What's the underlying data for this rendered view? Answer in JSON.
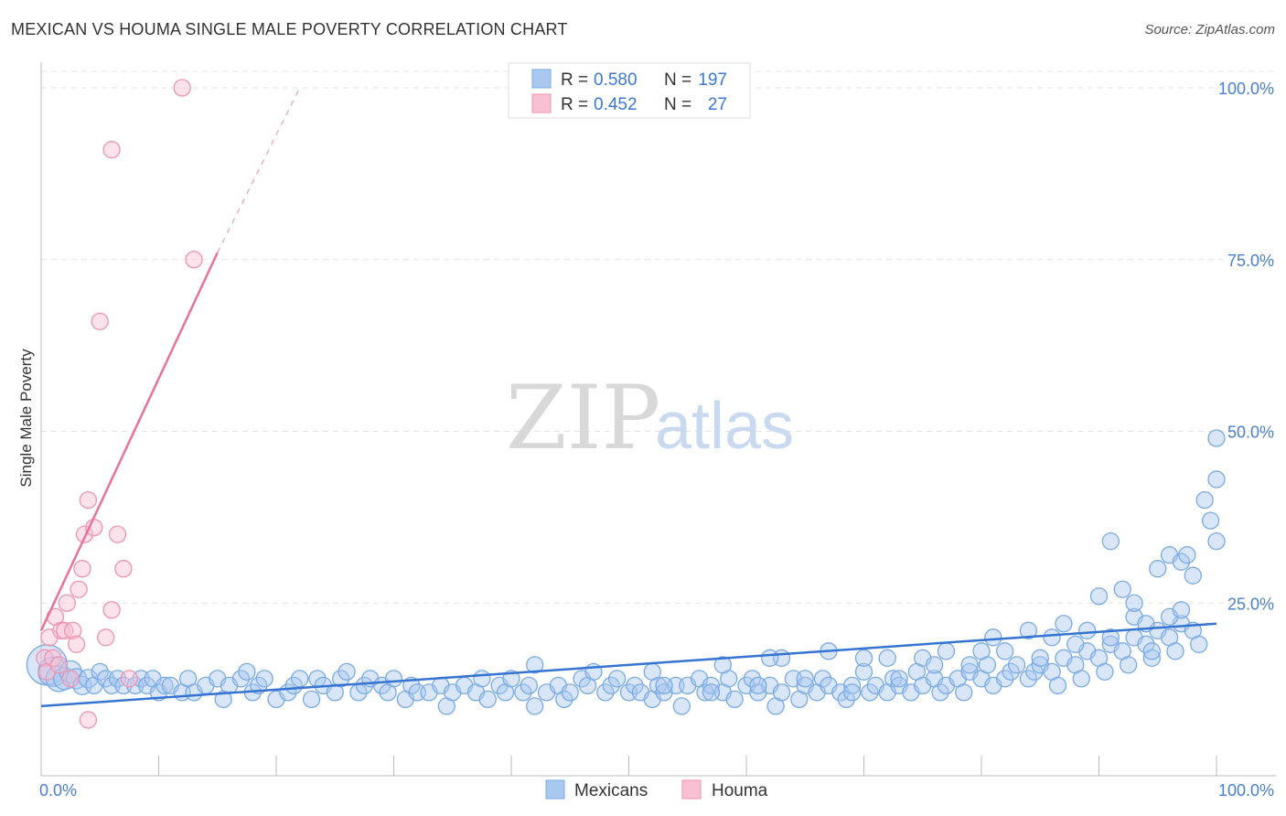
{
  "header": {
    "title": "MEXICAN VS HOUMA SINGLE MALE POVERTY CORRELATION CHART",
    "source": "Source: ZipAtlas.com"
  },
  "watermark": {
    "zip": "ZIP",
    "atlas": "atlas"
  },
  "legend": {
    "series": [
      {
        "name": "Mexicans",
        "r_label": "R =",
        "r_value": "0.580",
        "n_label": "N =",
        "n_value": "197",
        "color": "#a9c8f0",
        "stroke": "#7aaae6"
      },
      {
        "name": "Houma",
        "r_label": "R =",
        "r_value": "0.452",
        "n_label": "N =",
        "n_value": "27",
        "color": "#f8c0d2",
        "stroke": "#ee93b2"
      }
    ]
  },
  "chart_data": {
    "type": "scatter",
    "title": "MEXICAN VS HOUMA SINGLE MALE POVERTY CORRELATION CHART",
    "xlabel": "",
    "ylabel": "Single Male Poverty",
    "xlim": [
      0,
      100
    ],
    "ylim": [
      0,
      100
    ],
    "x_tick_labels": [
      "0.0%",
      "100.0%"
    ],
    "y_ticks": [
      25,
      50,
      75,
      100
    ],
    "y_tick_labels": [
      "25.0%",
      "50.0%",
      "75.0%",
      "100.0%"
    ],
    "grid": true,
    "series": [
      {
        "name": "Mexicans",
        "color": "#a9c8f0",
        "stroke": "#7aaae6",
        "trend": {
          "x0": 0,
          "y0": 10,
          "x1": 100,
          "y1": 22,
          "color": "#3574d1"
        },
        "points": [
          [
            0.5,
            16,
            22
          ],
          [
            1,
            15,
            16
          ],
          [
            1.5,
            14,
            14
          ],
          [
            2,
            14,
            12
          ],
          [
            2.5,
            15,
            12
          ],
          [
            3,
            14,
            11
          ],
          [
            3.5,
            13,
            10
          ],
          [
            4,
            14,
            10
          ],
          [
            4.5,
            13,
            9
          ],
          [
            5,
            15,
            9
          ],
          [
            5.5,
            14,
            9
          ],
          [
            6,
            13,
            9
          ],
          [
            6.5,
            14,
            9
          ],
          [
            7,
            13,
            9
          ],
          [
            8,
            13,
            9
          ],
          [
            8.5,
            14,
            9
          ],
          [
            9,
            13,
            9
          ],
          [
            9.5,
            14,
            9
          ],
          [
            10,
            12,
            9
          ],
          [
            10.5,
            13,
            9
          ],
          [
            11,
            13,
            9
          ],
          [
            12,
            12,
            9
          ],
          [
            12.5,
            14,
            9
          ],
          [
            13,
            12,
            9
          ],
          [
            14,
            13,
            9
          ],
          [
            15,
            14,
            9
          ],
          [
            15.5,
            11,
            9
          ],
          [
            16,
            13,
            9
          ],
          [
            17,
            14,
            9
          ],
          [
            17.5,
            15,
            9
          ],
          [
            18,
            12,
            9
          ],
          [
            18.5,
            13,
            9
          ],
          [
            19,
            14,
            9
          ],
          [
            20,
            11,
            9
          ],
          [
            21,
            12,
            9
          ],
          [
            21.5,
            13,
            9
          ],
          [
            22,
            14,
            9
          ],
          [
            23,
            11,
            9
          ],
          [
            23.5,
            14,
            9
          ],
          [
            24,
            13,
            9
          ],
          [
            25,
            12,
            9
          ],
          [
            25.5,
            14,
            9
          ],
          [
            26,
            15,
            9
          ],
          [
            27,
            12,
            9
          ],
          [
            27.5,
            13,
            9
          ],
          [
            28,
            14,
            9
          ],
          [
            29,
            13,
            9
          ],
          [
            29.5,
            12,
            9
          ],
          [
            30,
            14,
            9
          ],
          [
            31,
            11,
            9
          ],
          [
            31.5,
            13,
            9
          ],
          [
            32,
            12,
            9
          ],
          [
            33,
            12,
            9
          ],
          [
            34,
            13,
            9
          ],
          [
            34.5,
            10,
            9
          ],
          [
            35,
            12,
            9
          ],
          [
            36,
            13,
            9
          ],
          [
            37,
            12,
            9
          ],
          [
            37.5,
            14,
            9
          ],
          [
            38,
            11,
            9
          ],
          [
            39,
            13,
            9
          ],
          [
            39.5,
            12,
            9
          ],
          [
            40,
            14,
            9
          ],
          [
            41,
            12,
            9
          ],
          [
            41.5,
            13,
            9
          ],
          [
            42,
            10,
            9
          ],
          [
            43,
            12,
            9
          ],
          [
            44,
            13,
            9
          ],
          [
            44.5,
            11,
            9
          ],
          [
            45,
            12,
            9
          ],
          [
            46,
            14,
            9
          ],
          [
            46.5,
            13,
            9
          ],
          [
            47,
            15,
            9
          ],
          [
            48,
            12,
            9
          ],
          [
            48.5,
            13,
            9
          ],
          [
            49,
            14,
            9
          ],
          [
            50,
            12,
            9
          ],
          [
            50.5,
            13,
            9
          ],
          [
            51,
            12,
            9
          ],
          [
            52,
            11,
            9
          ],
          [
            52.5,
            13,
            9
          ],
          [
            53,
            12,
            9
          ],
          [
            54,
            13,
            9
          ],
          [
            54.5,
            10,
            9
          ],
          [
            55,
            13,
            9
          ],
          [
            56,
            14,
            9
          ],
          [
            56.5,
            12,
            9
          ],
          [
            57,
            13,
            9
          ],
          [
            58,
            12,
            9
          ],
          [
            58.5,
            14,
            9
          ],
          [
            59,
            11,
            9
          ],
          [
            60,
            13,
            9
          ],
          [
            60.5,
            14,
            9
          ],
          [
            61,
            12,
            9
          ],
          [
            62,
            13,
            9
          ],
          [
            62.5,
            10,
            9
          ],
          [
            63,
            12,
            9
          ],
          [
            64,
            14,
            9
          ],
          [
            64.5,
            11,
            9
          ],
          [
            65,
            13,
            9
          ],
          [
            66,
            12,
            9
          ],
          [
            66.5,
            14,
            9
          ],
          [
            67,
            13,
            9
          ],
          [
            68,
            12,
            9
          ],
          [
            68.5,
            11,
            9
          ],
          [
            69,
            13,
            9
          ],
          [
            70,
            15,
            9
          ],
          [
            70.5,
            12,
            9
          ],
          [
            71,
            13,
            9
          ],
          [
            72,
            12,
            9
          ],
          [
            72.5,
            14,
            9
          ],
          [
            73,
            13,
            9
          ],
          [
            74,
            12,
            9
          ],
          [
            74.5,
            15,
            9
          ],
          [
            75,
            13,
            9
          ],
          [
            76,
            14,
            9
          ],
          [
            76.5,
            12,
            9
          ],
          [
            77,
            13,
            9
          ],
          [
            78,
            14,
            9
          ],
          [
            78.5,
            12,
            9
          ],
          [
            79,
            15,
            9
          ],
          [
            80,
            14,
            9
          ],
          [
            80.5,
            16,
            9
          ],
          [
            81,
            13,
            9
          ],
          [
            82,
            14,
            9
          ],
          [
            82.5,
            15,
            9
          ],
          [
            83,
            16,
            9
          ],
          [
            84,
            14,
            9
          ],
          [
            84.5,
            15,
            9
          ],
          [
            85,
            16,
            9
          ],
          [
            86,
            15,
            9
          ],
          [
            86.5,
            13,
            9
          ],
          [
            87,
            17,
            9
          ],
          [
            88,
            16,
            9
          ],
          [
            88.5,
            14,
            9
          ],
          [
            89,
            18,
            9
          ],
          [
            90,
            17,
            9
          ],
          [
            90.5,
            15,
            9
          ],
          [
            91,
            19,
            9
          ],
          [
            92,
            18,
            9
          ],
          [
            92.5,
            16,
            9
          ],
          [
            93,
            20,
            9
          ],
          [
            94,
            19,
            9
          ],
          [
            94.5,
            17,
            9
          ],
          [
            95,
            21,
            9
          ],
          [
            96,
            20,
            9
          ],
          [
            96.5,
            18,
            9
          ],
          [
            97,
            22,
            9
          ],
          [
            98,
            21,
            9
          ],
          [
            98.5,
            19,
            9
          ],
          [
            42,
            16,
            9
          ],
          [
            52,
            15,
            9
          ],
          [
            58,
            16,
            9
          ],
          [
            63,
            17,
            9
          ],
          [
            67,
            18,
            9
          ],
          [
            70,
            17,
            9
          ],
          [
            72,
            17,
            9
          ],
          [
            75,
            17,
            9
          ],
          [
            77,
            18,
            9
          ],
          [
            80,
            18,
            9
          ],
          [
            81,
            20,
            9
          ],
          [
            84,
            21,
            9
          ],
          [
            86,
            20,
            9
          ],
          [
            88,
            19,
            9
          ],
          [
            89,
            21,
            9
          ],
          [
            91,
            20,
            9
          ],
          [
            93,
            23,
            9
          ],
          [
            94,
            22,
            9
          ],
          [
            96,
            23,
            9
          ],
          [
            97,
            24,
            9
          ],
          [
            53,
            13,
            9
          ],
          [
            57,
            12,
            9
          ],
          [
            61,
            13,
            9
          ],
          [
            65,
            14,
            9
          ],
          [
            69,
            12,
            9
          ],
          [
            73,
            14,
            9
          ],
          [
            76,
            16,
            9
          ],
          [
            79,
            16,
            9
          ],
          [
            82,
            18,
            9
          ],
          [
            85,
            17,
            9
          ],
          [
            87,
            22,
            9
          ],
          [
            90,
            26,
            9
          ],
          [
            91,
            34,
            9
          ],
          [
            92,
            27,
            9
          ],
          [
            93,
            25,
            9
          ],
          [
            94.5,
            18,
            9
          ],
          [
            95,
            30,
            9
          ],
          [
            96,
            32,
            9
          ],
          [
            97,
            31,
            9
          ],
          [
            98,
            29,
            9
          ],
          [
            99,
            40,
            9
          ],
          [
            99.5,
            37,
            9
          ],
          [
            100,
            34,
            9
          ],
          [
            100,
            43,
            9
          ],
          [
            100,
            49,
            9
          ],
          [
            97.5,
            32,
            9
          ],
          [
            62,
            17,
            9
          ]
        ]
      },
      {
        "name": "Houma",
        "color": "#f8c0d2",
        "stroke": "#ee93b2",
        "trend": {
          "x0": 0,
          "y0": 21,
          "x1": 15,
          "y1": 76,
          "dash_x1": 22,
          "dash_y1": 100,
          "color": "#e8729a"
        },
        "points": [
          [
            0.3,
            17,
            9
          ],
          [
            0.5,
            15,
            9
          ],
          [
            0.7,
            20,
            9
          ],
          [
            1,
            17,
            9
          ],
          [
            1.2,
            23,
            9
          ],
          [
            1.5,
            16,
            9
          ],
          [
            1.7,
            21,
            9
          ],
          [
            2,
            21,
            9
          ],
          [
            2.2,
            25,
            9
          ],
          [
            2.5,
            14,
            9
          ],
          [
            2.7,
            21,
            9
          ],
          [
            3,
            19,
            9
          ],
          [
            3.2,
            27,
            9
          ],
          [
            3.5,
            30,
            9
          ],
          [
            3.7,
            35,
            9
          ],
          [
            4,
            40,
            9
          ],
          [
            4.5,
            36,
            9
          ],
          [
            5,
            66,
            9
          ],
          [
            5.5,
            20,
            9
          ],
          [
            6,
            24,
            9
          ],
          [
            6.5,
            35,
            9
          ],
          [
            7,
            30,
            9
          ],
          [
            7.5,
            14,
            9
          ],
          [
            4,
            8,
            9
          ],
          [
            6,
            91,
            9
          ],
          [
            13,
            75,
            9
          ],
          [
            12,
            100,
            9
          ]
        ]
      }
    ]
  },
  "bottom_legend": [
    {
      "name": "Mexicans",
      "color": "#a9c8f0",
      "stroke": "#7aaae6"
    },
    {
      "name": "Houma",
      "color": "#f8c0d2",
      "stroke": "#ee93b2"
    }
  ]
}
